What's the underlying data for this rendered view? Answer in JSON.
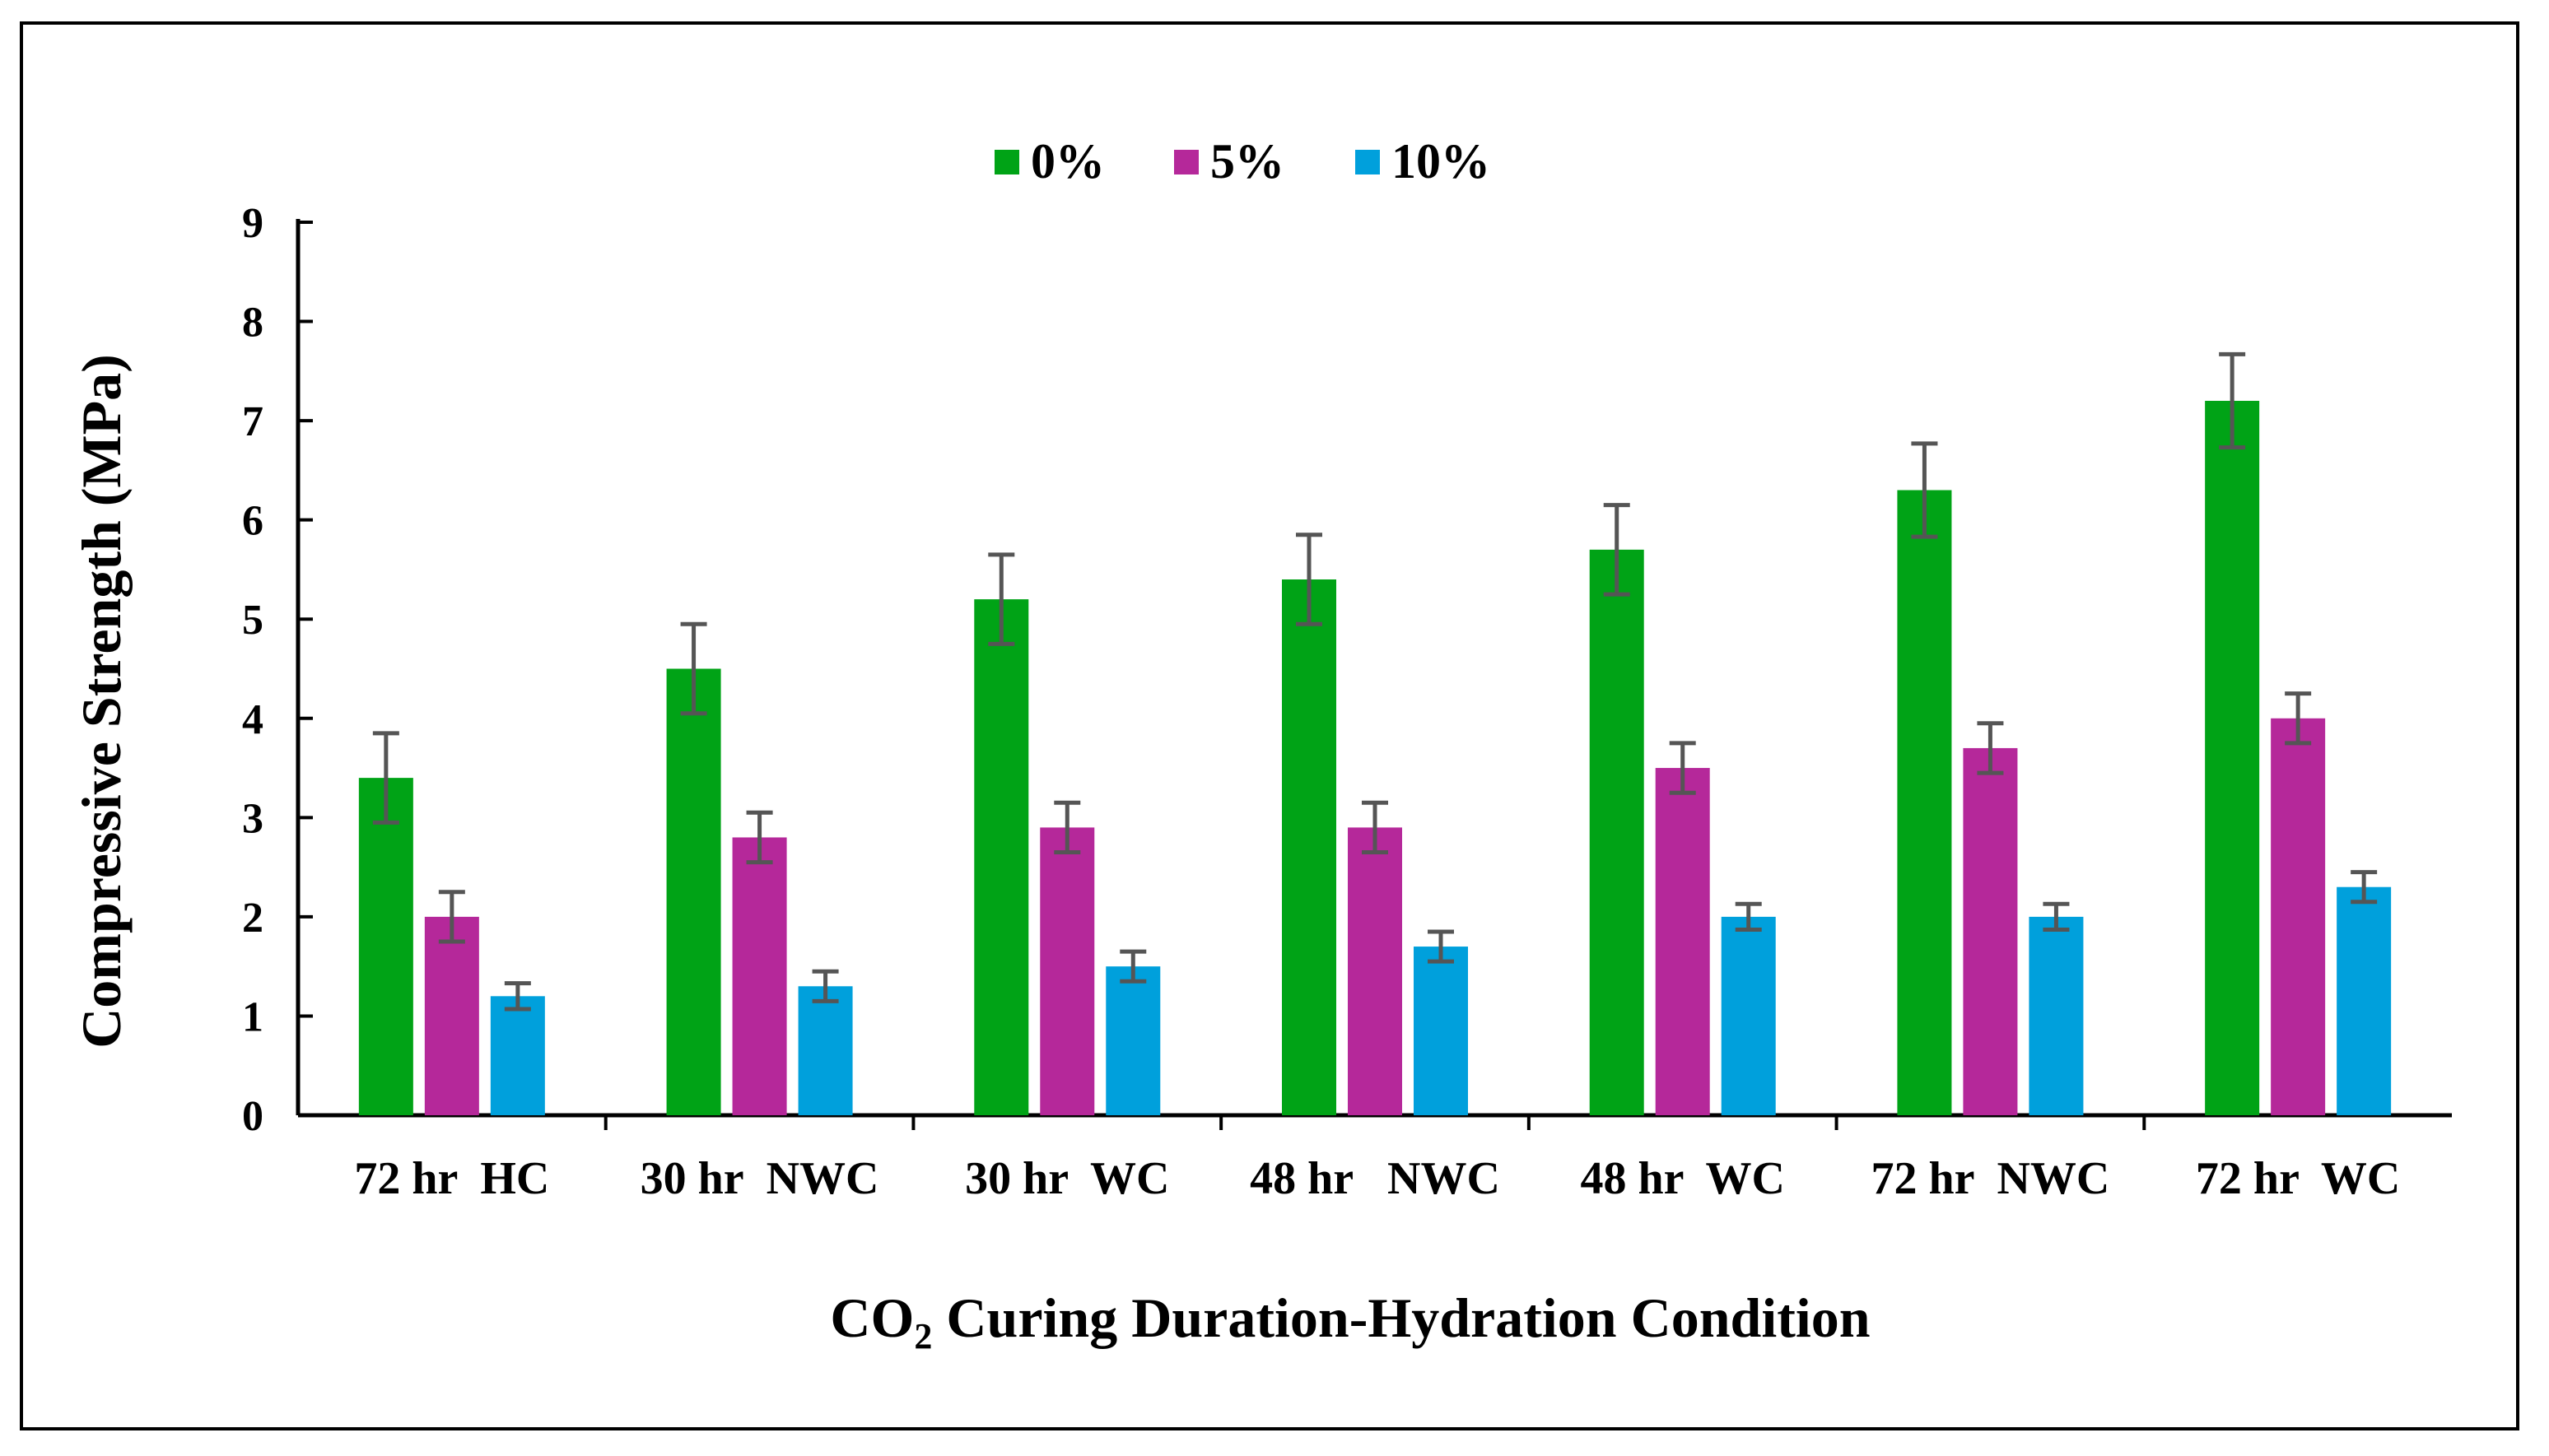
{
  "chart_data": {
    "type": "bar",
    "title": "",
    "categories": [
      "72 hr  HC",
      "30 hr  NWC",
      "30 hr  WC",
      "48 hr   NWC",
      "48 hr  WC",
      "72 hr  NWC",
      "72 hr  WC"
    ],
    "series": [
      {
        "name": "0%",
        "color": "#00A316",
        "values": [
          3.4,
          4.5,
          5.2,
          5.4,
          5.7,
          6.3,
          7.2
        ],
        "errors": [
          0.45,
          0.45,
          0.45,
          0.45,
          0.45,
          0.47,
          0.47
        ]
      },
      {
        "name": "5%",
        "color": "#B5289A",
        "values": [
          2.0,
          2.8,
          2.9,
          2.9,
          3.5,
          3.7,
          4.0
        ],
        "errors": [
          0.25,
          0.25,
          0.25,
          0.25,
          0.25,
          0.25,
          0.25
        ]
      },
      {
        "name": "10%",
        "color": "#00A0DC",
        "values": [
          1.2,
          1.3,
          1.5,
          1.7,
          2.0,
          2.0,
          2.3
        ],
        "errors": [
          0.13,
          0.15,
          0.15,
          0.15,
          0.13,
          0.13,
          0.15
        ]
      }
    ],
    "ylabel": "Compressive Strength (MPa)",
    "xlabel": {
      "prefix": "CO",
      "subscript": "2",
      "suffix": " Curing Duration-Hydration Condition"
    },
    "ylim": [
      0,
      9
    ],
    "yticks": [
      0,
      1,
      2,
      3,
      4,
      5,
      6,
      7,
      8,
      9
    ],
    "grid": false,
    "legend_position": "top-center",
    "error_bar_color": "#555555"
  }
}
